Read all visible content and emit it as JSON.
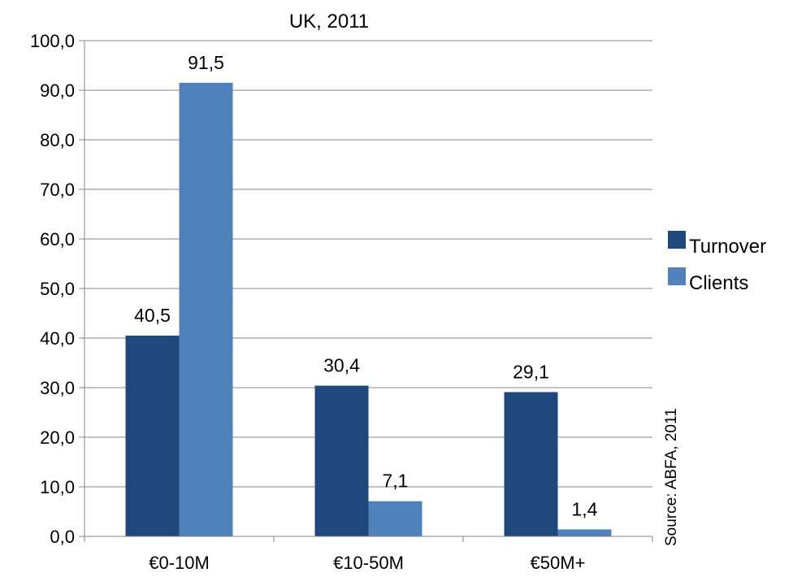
{
  "chart_data": {
    "type": "bar",
    "title": "UK, 2011",
    "categories": [
      "€0-10M",
      "€10-50M",
      "€50M+"
    ],
    "series": [
      {
        "name": "Turnover",
        "values": [
          40.5,
          30.4,
          29.1
        ],
        "labels": [
          "40,5",
          "30,4",
          "29,1"
        ],
        "color": "#1F497D"
      },
      {
        "name": "Clients",
        "values": [
          91.5,
          7.1,
          1.4
        ],
        "labels": [
          "91,5",
          "7,1",
          "1,4"
        ],
        "color": "#4F81BD"
      }
    ],
    "ylim": [
      0,
      100
    ],
    "yticks": [
      0,
      10,
      20,
      30,
      40,
      50,
      60,
      70,
      80,
      90,
      100
    ],
    "ytick_labels": [
      "0,0",
      "10,0",
      "20,0",
      "30,0",
      "40,0",
      "50,0",
      "60,0",
      "70,0",
      "80,0",
      "90,0",
      "100,0"
    ],
    "grid": true,
    "legend": "right",
    "source": "Source: ABFA, 2011"
  }
}
